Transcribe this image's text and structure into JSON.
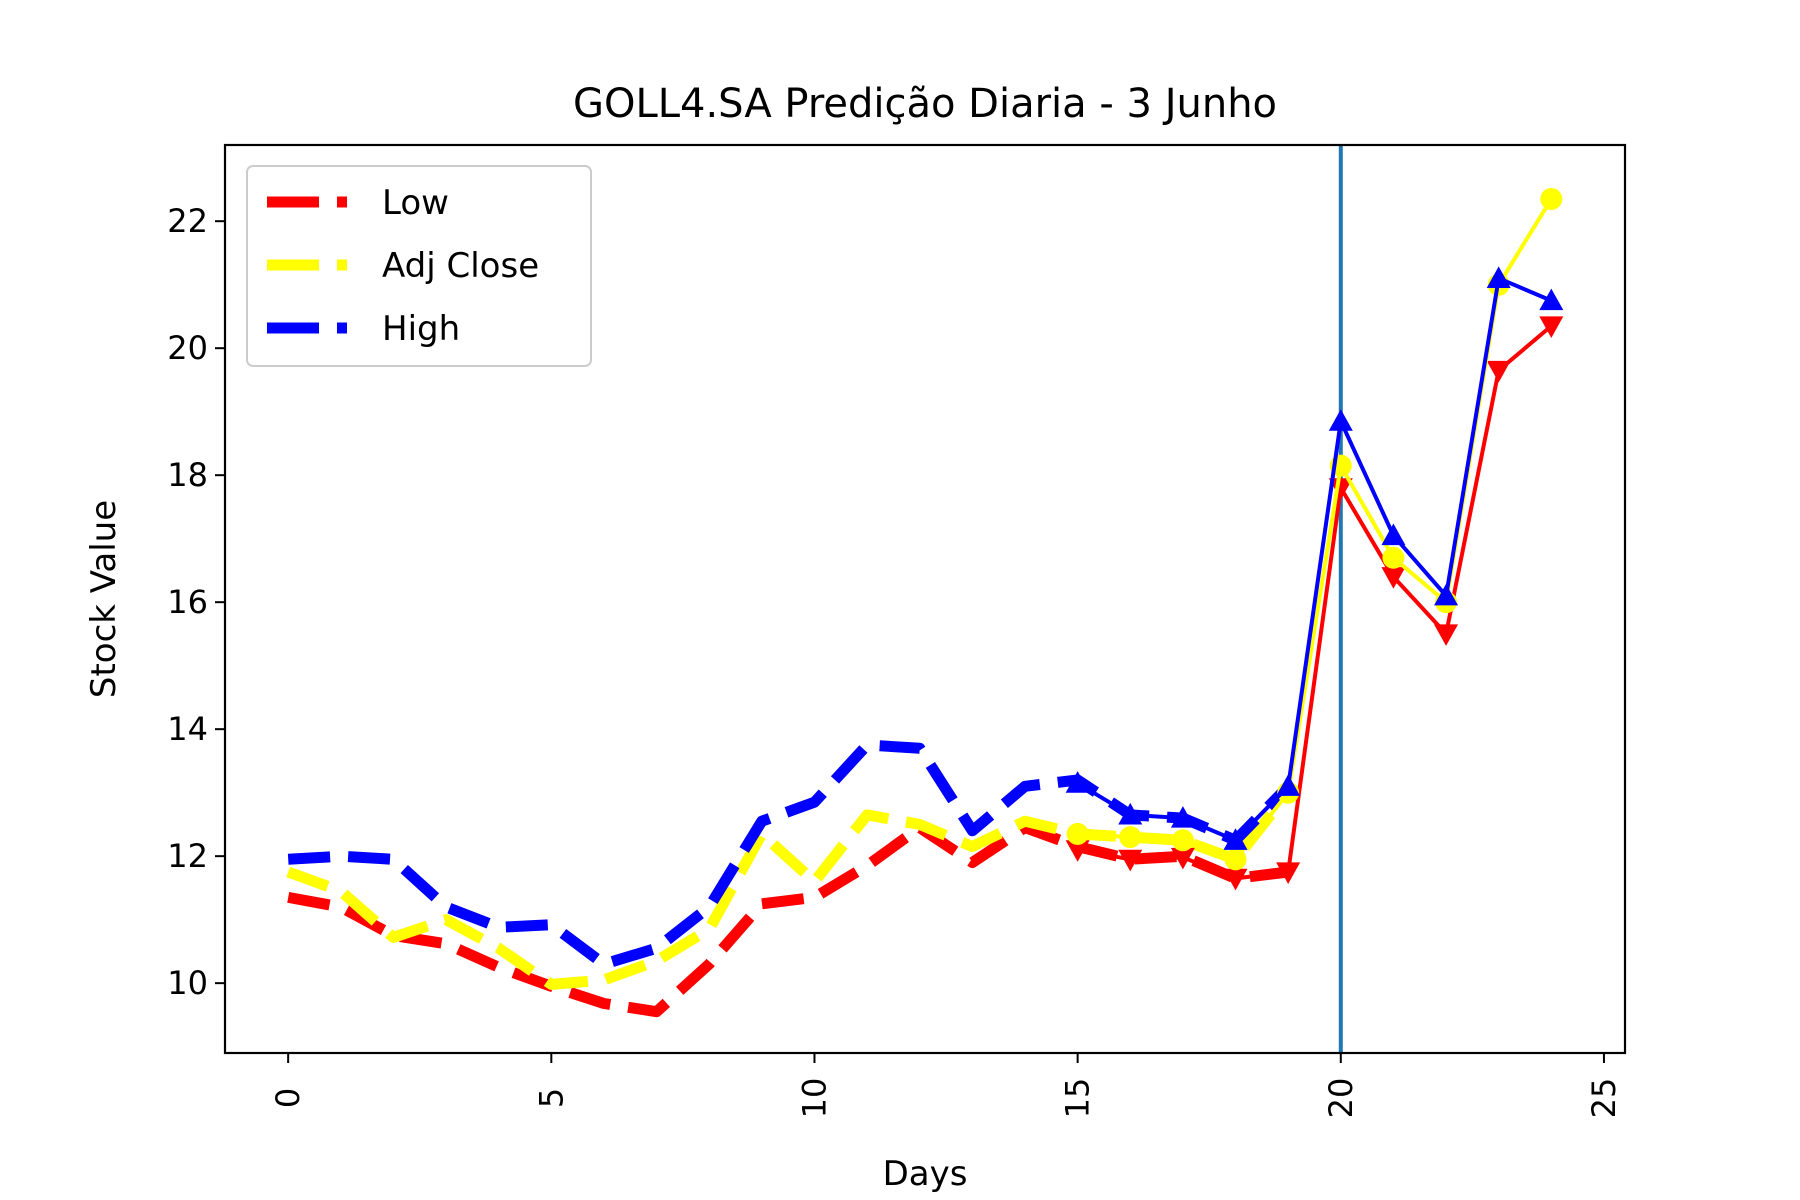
{
  "chart_data": {
    "type": "line",
    "title": "GOLL4.SA Predição Diaria - 3 Junho",
    "xlabel": "Days",
    "ylabel": "Stock Value",
    "xlim": [
      -1.2,
      25.4
    ],
    "ylim": [
      8.9,
      23.2
    ],
    "xticks": [
      0,
      5,
      10,
      15,
      20,
      25
    ],
    "yticks": [
      10,
      12,
      14,
      16,
      18,
      20,
      22
    ],
    "xtick_labels": [
      "0",
      "5",
      "10",
      "15",
      "20",
      "25"
    ],
    "ytick_labels": [
      "10",
      "12",
      "14",
      "16",
      "18",
      "20",
      "22"
    ],
    "grid": false,
    "legend_position": "upper-left",
    "vertical_line_x": 20,
    "vertical_line_color": "#1f77b4",
    "series": [
      {
        "name": "Low",
        "color": "#ff0000",
        "historical_x": [
          0,
          1,
          2,
          3,
          4,
          5,
          6,
          7,
          8,
          9,
          10,
          11,
          12,
          13,
          14,
          15,
          16,
          17,
          18,
          19
        ],
        "historical_y": [
          11.35,
          11.2,
          10.75,
          10.62,
          10.25,
          9.95,
          9.68,
          9.55,
          10.3,
          11.25,
          11.35,
          11.85,
          12.45,
          11.9,
          12.45,
          12.15,
          11.95,
          12.0,
          11.65,
          11.75
        ],
        "forecast_x": [
          15,
          16,
          17,
          18,
          19,
          20,
          21,
          22,
          23,
          24
        ],
        "forecast_y": [
          12.1,
          11.95,
          11.98,
          11.65,
          11.75,
          17.8,
          16.4,
          15.5,
          19.65,
          20.35
        ],
        "marker": "triangle-down"
      },
      {
        "name": "Adj Close",
        "color": "#ffff00",
        "historical_x": [
          0,
          1,
          2,
          3,
          4,
          5,
          6,
          7,
          8,
          9,
          10,
          11,
          12,
          13,
          14,
          15,
          16,
          17,
          18,
          19
        ],
        "historical_y": [
          11.75,
          11.45,
          10.72,
          11.0,
          10.55,
          9.98,
          10.05,
          10.35,
          10.85,
          12.35,
          11.6,
          12.65,
          12.5,
          12.15,
          12.55,
          12.35,
          12.3,
          12.25,
          11.95,
          13.0
        ],
        "forecast_x": [
          15,
          16,
          17,
          18,
          19,
          20,
          21,
          22,
          23,
          24
        ],
        "forecast_y": [
          12.35,
          12.3,
          12.25,
          11.95,
          13.0,
          18.15,
          16.7,
          16.0,
          21.0,
          22.35
        ],
        "marker": "circle"
      },
      {
        "name": "High",
        "color": "#0000ff",
        "historical_x": [
          0,
          1,
          2,
          3,
          4,
          5,
          6,
          7,
          8,
          9,
          10,
          11,
          12,
          13,
          14,
          15,
          16,
          17,
          18,
          19
        ],
        "historical_y": [
          11.95,
          12.0,
          11.95,
          11.2,
          10.88,
          10.92,
          10.3,
          10.55,
          11.2,
          12.55,
          12.85,
          13.75,
          13.7,
          12.4,
          13.1,
          13.2,
          12.65,
          12.6,
          12.25,
          13.1
        ],
        "forecast_x": [
          15,
          16,
          17,
          18,
          19,
          20,
          21,
          22,
          23,
          24
        ],
        "forecast_y": [
          13.15,
          12.65,
          12.6,
          12.25,
          13.1,
          18.85,
          17.05,
          16.1,
          21.1,
          20.75
        ],
        "marker": "triangle-up"
      }
    ]
  }
}
